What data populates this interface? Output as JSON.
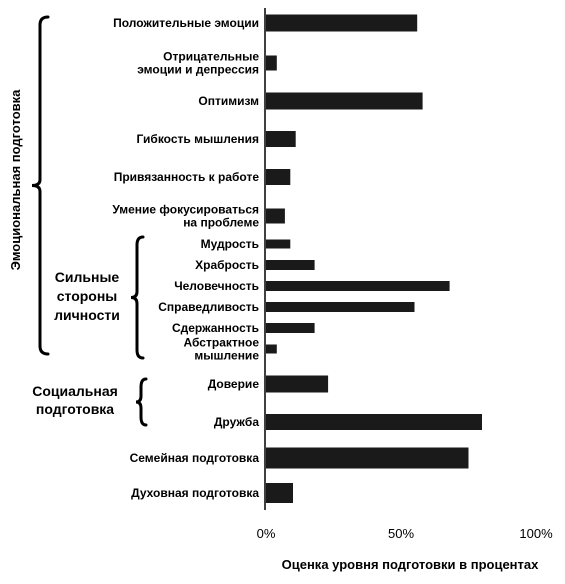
{
  "chart_data": {
    "type": "bar",
    "orientation": "horizontal",
    "categories": [
      [
        "Положительные эмоции"
      ],
      [
        "Отрицательные",
        "эмоции и депрессия"
      ],
      [
        "Оптимизм"
      ],
      [
        "Гибкость мышления"
      ],
      [
        "Привязанность к работе"
      ],
      [
        "Умение фокусироваться",
        "на проблеме"
      ],
      [
        "Мудрость"
      ],
      [
        "Храбрость"
      ],
      [
        "Человечность"
      ],
      [
        "Справедливость"
      ],
      [
        "Сдержанность"
      ],
      [
        "Абстрактное",
        "мышление"
      ],
      [
        "Доверие"
      ],
      [
        "Дружба"
      ],
      [
        "Семейная подготовка"
      ],
      [
        "Духовная подготовка"
      ]
    ],
    "values": [
      56,
      4,
      58,
      11,
      9,
      7,
      9,
      18,
      68,
      55,
      18,
      4,
      23,
      80,
      75,
      10
    ],
    "xlim": [
      0,
      100
    ],
    "xticks": [
      "0%",
      "50%",
      "100%"
    ],
    "xlabel": "Оценка уровня подготовки в процентах",
    "ylabel": "",
    "grid": false,
    "groups": {
      "emotional": {
        "label": "Эмоциональная подготовка"
      },
      "strengths": {
        "label": [
          "Сильные",
          "стороны",
          "личности"
        ]
      },
      "social": {
        "label": [
          "Социальная",
          "подготовка"
        ]
      }
    },
    "colors": {
      "bar": "#1a1a1a",
      "axis": "#000000"
    }
  }
}
